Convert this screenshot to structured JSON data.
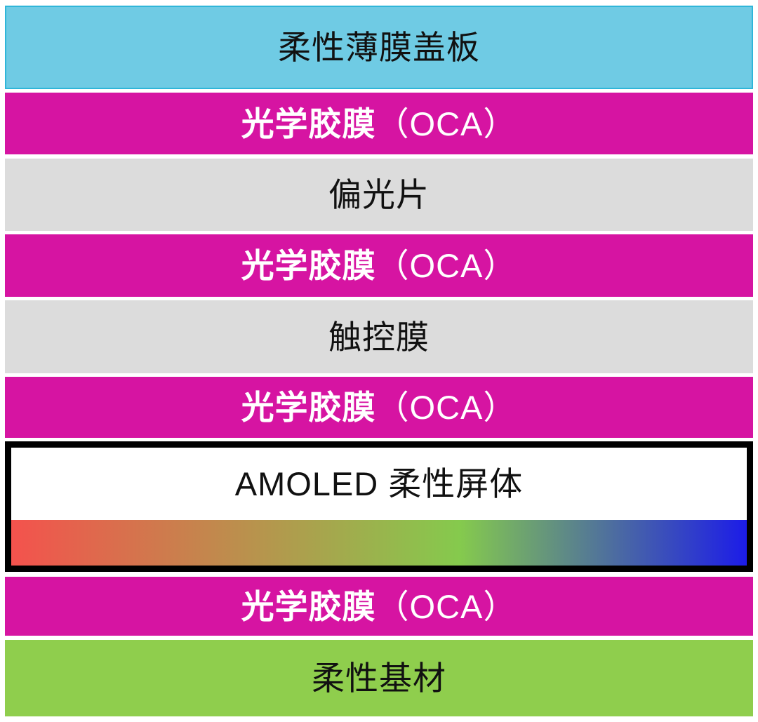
{
  "diagram": {
    "layers": [
      {
        "id": "cover-film",
        "label": "柔性薄膜盖板",
        "bg": "cyan",
        "text": "black"
      },
      {
        "id": "oca-1",
        "label_bold": "光学胶膜",
        "label_suffix": "（OCA）",
        "bg": "magenta",
        "text": "white"
      },
      {
        "id": "polarizer",
        "label": "偏光片",
        "bg": "gray",
        "text": "black"
      },
      {
        "id": "oca-2",
        "label_bold": "光学胶膜",
        "label_suffix": "（OCA）",
        "bg": "magenta",
        "text": "white"
      },
      {
        "id": "touch-film",
        "label": "触控膜",
        "bg": "gray",
        "text": "black"
      },
      {
        "id": "oca-3",
        "label_bold": "光学胶膜",
        "label_suffix": "（OCA）",
        "bg": "magenta",
        "text": "white"
      },
      {
        "id": "amoled-panel",
        "label": "AMOLED 柔性屏体",
        "bg": "white",
        "border": "black",
        "text": "black",
        "gradient_stops": [
          "#f4524d",
          "#85ca4d",
          "#1c1ce8"
        ],
        "gradient_green_position": "61%"
      },
      {
        "id": "oca-4",
        "label_bold": "光学胶膜",
        "label_suffix": "（OCA）",
        "bg": "magenta",
        "text": "white"
      },
      {
        "id": "substrate",
        "label": "柔性基材",
        "bg": "green",
        "text": "black"
      }
    ],
    "colors": {
      "cyan": "#6fcbe4",
      "magenta": "#d614a2",
      "gray": "#dcdcdc",
      "green": "#8fce4d",
      "white": "#ffffff",
      "amoled_border": "#000000",
      "gradient_red": "#f4524d",
      "gradient_green": "#85ca4d",
      "gradient_blue": "#1c1ce8"
    }
  }
}
